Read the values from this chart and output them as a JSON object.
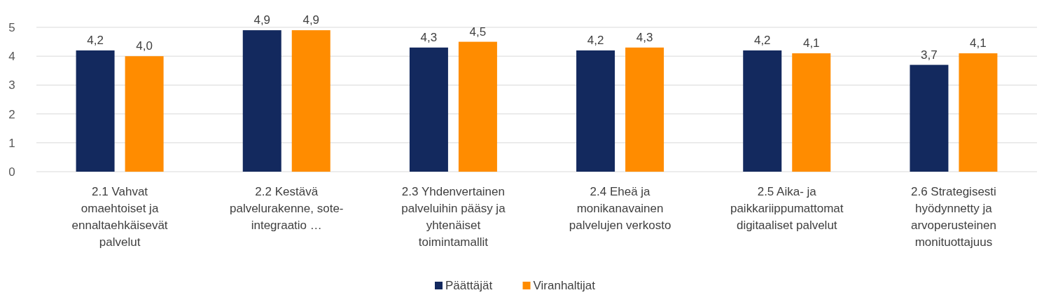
{
  "chart_data": {
    "type": "bar",
    "categories": [
      "2.1 Vahvat omaehtoiset ja ennaltaehkäisevät palvelut",
      "2.2 Kestävä palvelurakenne, sote-integraatio …",
      "2.3 Yhdenvertainen palveluihin pääsy ja yhtenäiset toimintamallit",
      "2.4 Eheä ja monikanavainen palvelujen verkosto",
      "2.5 Aika- ja paikkariippumattomat digitaaliset palvelut",
      "2.6 Strategisesti hyödynnetty ja arvoperusteinen monituottajuus"
    ],
    "series": [
      {
        "name": "Päättäjät",
        "color": "#13295e",
        "values": [
          4.2,
          4.9,
          4.3,
          4.2,
          4.2,
          3.7
        ],
        "value_labels": [
          "4,2",
          "4,9",
          "4,3",
          "4,2",
          "4,2",
          "3,7"
        ]
      },
      {
        "name": "Viranhaltijat",
        "color": "#ff8c00",
        "values": [
          4.0,
          4.9,
          4.5,
          4.3,
          4.1,
          4.1
        ],
        "value_labels": [
          "4,0",
          "4,9",
          "4,5",
          "4,3",
          "4,1",
          "4,1"
        ]
      }
    ],
    "ylim": [
      0,
      5
    ],
    "yticks": [
      0,
      1,
      2,
      3,
      4,
      5
    ],
    "grid": "y",
    "legend": "bottom"
  }
}
